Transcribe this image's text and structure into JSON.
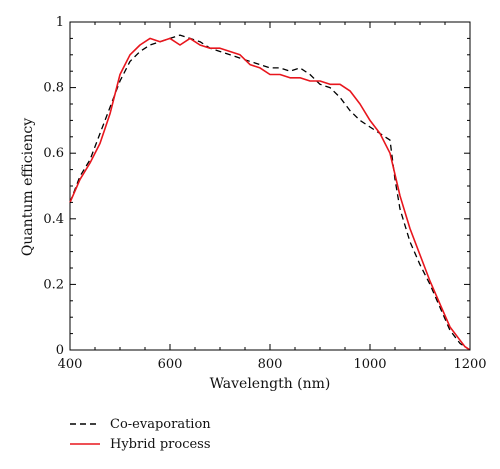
{
  "chart_data": {
    "type": "line",
    "xlabel": "Wavelength (nm)",
    "ylabel": "Quantum efficiency",
    "xlim": [
      400,
      1200
    ],
    "ylim": [
      0,
      1
    ],
    "x_ticks": [
      400,
      600,
      800,
      1000,
      1200
    ],
    "y_ticks": [
      0,
      0.2,
      0.4,
      0.6,
      0.8,
      1
    ],
    "y_tick_labels": [
      "0",
      "0.2",
      "0.4",
      "0.6",
      "0.8",
      "1"
    ],
    "grid": false,
    "legend_position": "below",
    "series": [
      {
        "name": "Co-evaporation",
        "color": "#000000",
        "dash": true,
        "x": [
          400,
          420,
          440,
          460,
          480,
          500,
          520,
          540,
          560,
          580,
          600,
          620,
          640,
          660,
          680,
          700,
          720,
          740,
          760,
          780,
          800,
          820,
          840,
          860,
          880,
          900,
          920,
          940,
          960,
          980,
          1000,
          1020,
          1040,
          1050,
          1060,
          1080,
          1100,
          1120,
          1140,
          1160,
          1180,
          1190,
          1200
        ],
        "y": [
          0.45,
          0.53,
          0.58,
          0.66,
          0.74,
          0.82,
          0.88,
          0.91,
          0.93,
          0.94,
          0.95,
          0.96,
          0.95,
          0.94,
          0.92,
          0.91,
          0.9,
          0.89,
          0.88,
          0.87,
          0.86,
          0.86,
          0.85,
          0.86,
          0.84,
          0.81,
          0.8,
          0.77,
          0.73,
          0.7,
          0.68,
          0.66,
          0.64,
          0.52,
          0.43,
          0.33,
          0.26,
          0.2,
          0.13,
          0.06,
          0.02,
          0.01,
          0.0
        ]
      },
      {
        "name": "Hybrid process",
        "color": "#e8161d",
        "dash": false,
        "x": [
          400,
          420,
          440,
          460,
          480,
          500,
          520,
          540,
          560,
          580,
          600,
          620,
          640,
          660,
          680,
          700,
          720,
          740,
          760,
          780,
          800,
          820,
          840,
          860,
          880,
          900,
          920,
          940,
          960,
          980,
          1000,
          1020,
          1040,
          1060,
          1080,
          1100,
          1120,
          1140,
          1160,
          1180,
          1190,
          1200
        ],
        "y": [
          0.45,
          0.52,
          0.57,
          0.63,
          0.72,
          0.84,
          0.9,
          0.93,
          0.95,
          0.94,
          0.95,
          0.93,
          0.95,
          0.93,
          0.92,
          0.92,
          0.91,
          0.9,
          0.87,
          0.86,
          0.84,
          0.84,
          0.83,
          0.83,
          0.82,
          0.82,
          0.81,
          0.81,
          0.79,
          0.75,
          0.7,
          0.66,
          0.6,
          0.47,
          0.37,
          0.29,
          0.21,
          0.14,
          0.07,
          0.03,
          0.01,
          0.0
        ]
      }
    ]
  }
}
